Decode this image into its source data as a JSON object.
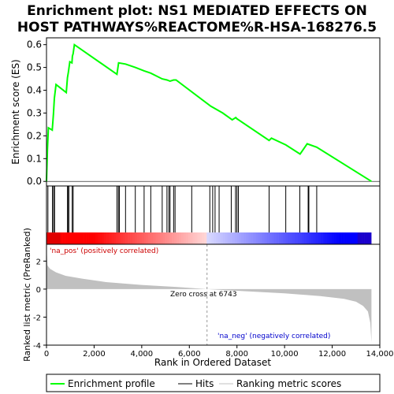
{
  "chart_data": {
    "type": "line",
    "title_lines": [
      "Enrichment plot: NS1 MEDIATED EFFECTS ON",
      "HOST PATHWAYS%REACTOME%R-HSA-168276.5"
    ],
    "es_panel": {
      "ylabel": "Enrichment score (ES)",
      "ylim": [
        -0.02,
        0.63
      ],
      "yticks": [
        "0.0",
        "0.1",
        "0.2",
        "0.3",
        "0.4",
        "0.5",
        "0.6"
      ],
      "ytick_values": [
        0.0,
        0.1,
        0.2,
        0.3,
        0.4,
        0.5,
        0.6
      ],
      "grid": false,
      "series": {
        "name": "Enrichment profile",
        "color": "#00ff00",
        "x": [
          0,
          40,
          80,
          240,
          290,
          330,
          400,
          830,
          880,
          920,
          980,
          1070,
          1090,
          1120,
          1170,
          2960,
          3030,
          3320,
          3730,
          4100,
          4380,
          4860,
          5060,
          5190,
          5340,
          5440,
          6900,
          7400,
          7800,
          7950,
          8000,
          9350,
          9450,
          10050,
          10650,
          10950,
          11350,
          13650
        ],
        "y": [
          0.0,
          0.14,
          0.235,
          0.225,
          0.295,
          0.365,
          0.425,
          0.39,
          0.455,
          0.48,
          0.525,
          0.52,
          0.55,
          0.56,
          0.6,
          0.47,
          0.52,
          0.515,
          0.5,
          0.485,
          0.475,
          0.45,
          0.445,
          0.44,
          0.445,
          0.445,
          0.33,
          0.3,
          0.27,
          0.28,
          0.275,
          0.18,
          0.19,
          0.16,
          0.12,
          0.165,
          0.15,
          0.0
        ]
      }
    },
    "hits": [
      60,
      250,
      300,
      340,
      880,
      900,
      940,
      1080,
      1120,
      2960,
      3020,
      3060,
      3320,
      3730,
      4100,
      4380,
      4860,
      5060,
      5140,
      5190,
      5340,
      5400,
      6100,
      6860,
      6980,
      7080,
      7250,
      7760,
      7940,
      8000,
      8060,
      9350,
      10050,
      10640,
      10990,
      11020,
      11350
    ],
    "metric_panel": {
      "ylabel": "Ranked list metric (PreRanked)",
      "xlabel": "Rank in Ordered Dataset",
      "ylim": [
        -4,
        3.2
      ],
      "yticks": [
        "-4",
        "-2",
        "0",
        "2"
      ],
      "ytick_values": [
        -4,
        -2,
        0,
        2
      ],
      "xlim": [
        0,
        14000
      ],
      "xticks": [
        "0",
        "2,000",
        "4,000",
        "6,000",
        "8,000",
        "10,000",
        "12,000",
        "14,000"
      ],
      "xtick_values": [
        0,
        2000,
        4000,
        6000,
        8000,
        10000,
        12000,
        14000
      ],
      "profile_x": [
        0,
        40,
        150,
        400,
        800,
        1500,
        2500,
        4000,
        5500,
        6743,
        8000,
        10000,
        11500,
        12500,
        13000,
        13300,
        13500,
        13600,
        13650
      ],
      "profile_y": [
        3.1,
        1.7,
        1.45,
        1.2,
        0.95,
        0.75,
        0.5,
        0.3,
        0.15,
        0.0,
        -0.12,
        -0.3,
        -0.5,
        -0.7,
        -0.9,
        -1.2,
        -1.6,
        -2.4,
        -3.8
      ],
      "fill_color": "#c0c0c0",
      "pos_label": "'na_pos' (positively correlated)",
      "neg_label": "'na_neg' (negatively correlated)",
      "zero_cross_label": "Zero cross at 6743",
      "zero_cross": 6743,
      "pos_color": "#cc0000",
      "neg_color": "#0000cc"
    },
    "dataset_size": 13650,
    "legend": [
      {
        "label": "Enrichment profile",
        "color": "#00ff00"
      },
      {
        "label": "Hits",
        "color": "#000000"
      },
      {
        "label": "Ranking metric scores",
        "color": "#c0c0c0"
      }
    ]
  }
}
